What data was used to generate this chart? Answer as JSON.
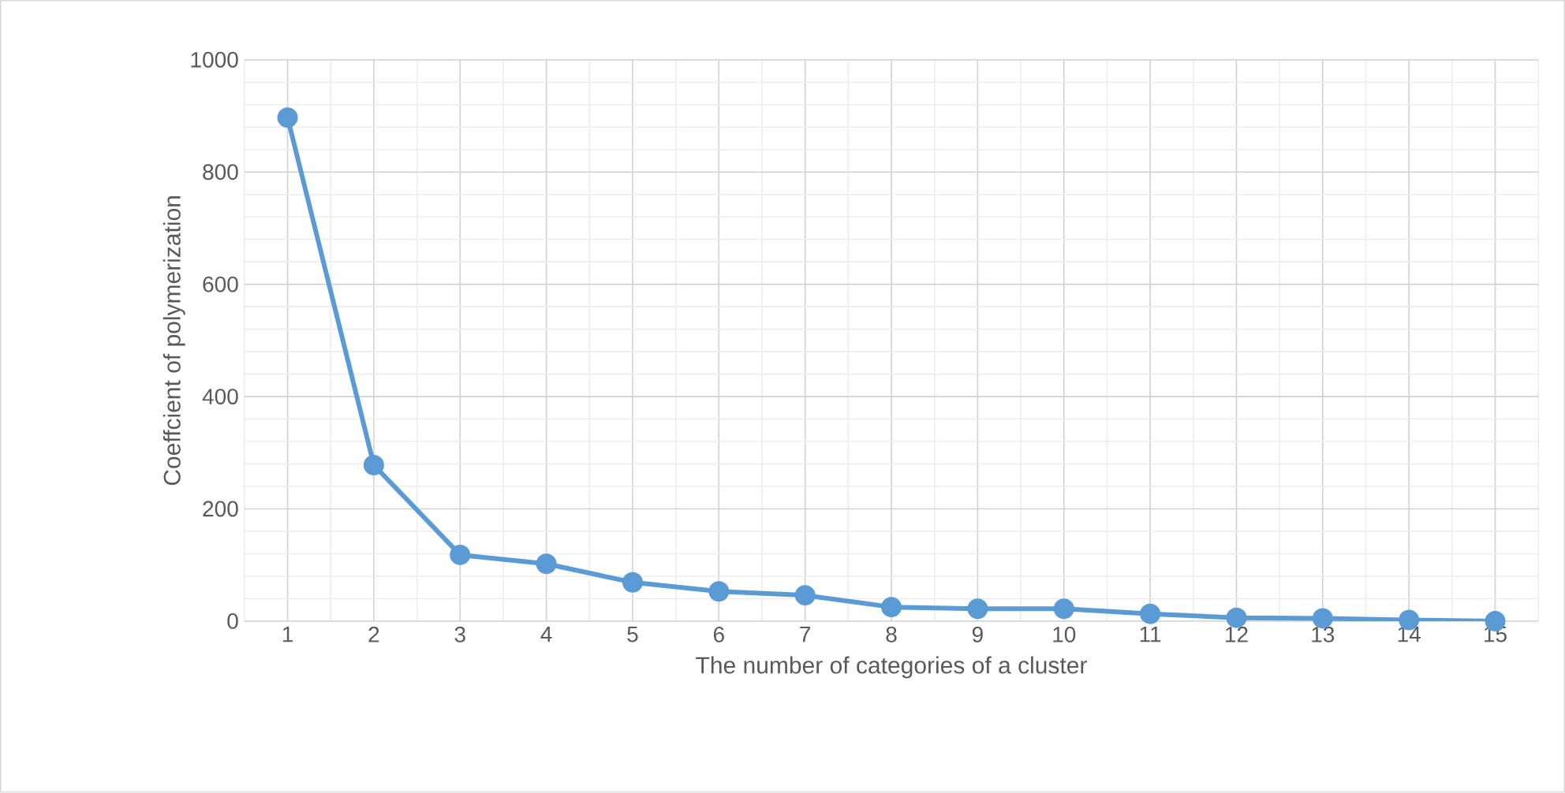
{
  "chart_data": {
    "type": "line",
    "xlabel": "The number of categories of a cluster",
    "ylabel": "Coeffcient of polymerization",
    "categories": [
      "1",
      "2",
      "3",
      "4",
      "5",
      "6",
      "7",
      "8",
      "9",
      "10",
      "11",
      "12",
      "13",
      "14",
      "15"
    ],
    "values": [
      897,
      278,
      118,
      102,
      69,
      53,
      46,
      25,
      22,
      22,
      13,
      6,
      5,
      2,
      0
    ],
    "color": "#5b9bd5",
    "marker": "circle",
    "line_style": "solid",
    "ylim": [
      0,
      1000
    ],
    "yticks": [
      0,
      200,
      400,
      600,
      800,
      1000
    ],
    "grid": true
  }
}
